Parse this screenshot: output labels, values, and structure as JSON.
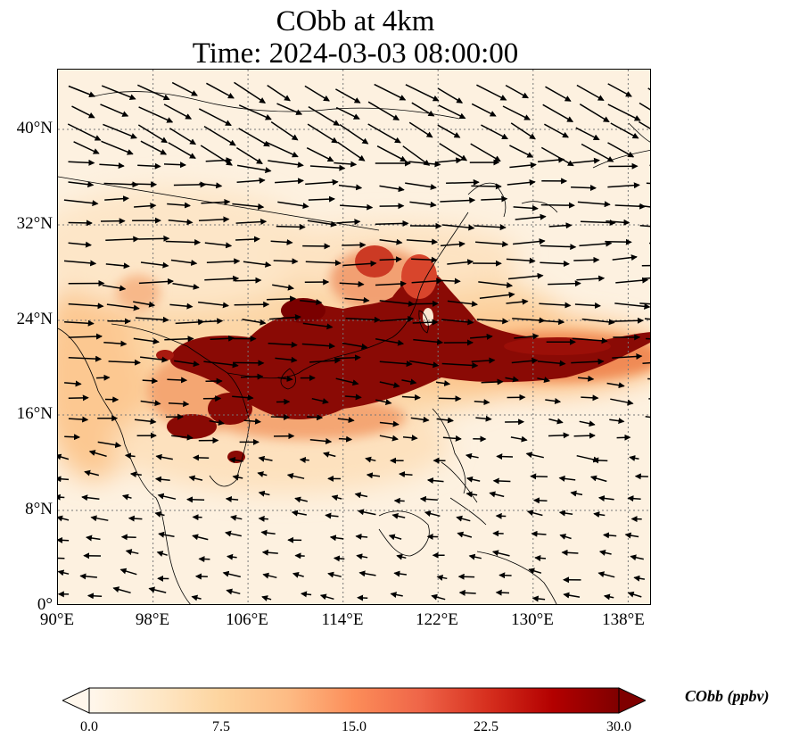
{
  "title": "CObb at 4km",
  "subtitle": "Time: 2024-03-03 08:00:00",
  "map": {
    "lon_range": [
      90,
      140
    ],
    "lat_range": [
      0,
      45
    ],
    "lat_ticks": [
      "40°N",
      "32°N",
      "24°N",
      "16°N",
      "8°N",
      "0°"
    ],
    "lon_ticks": [
      "90°E",
      "98°E",
      "106°E",
      "114°E",
      "122°E",
      "130°E",
      "138°E"
    ],
    "gridlines": true,
    "variable": "CObb",
    "overlay": "wind vectors"
  },
  "colorbar": {
    "label": "CObb (ppbv)",
    "ticks": [
      "0.0",
      "7.5",
      "15.0",
      "22.5",
      "30.0"
    ],
    "min": 0.0,
    "max": 30.0,
    "colormap": [
      "#fff7ec",
      "#fee8c8",
      "#fdd49e",
      "#fdbb84",
      "#fc8d59",
      "#ef6548",
      "#d7301f",
      "#b30000",
      "#7f0000"
    ],
    "extend": "both"
  }
}
